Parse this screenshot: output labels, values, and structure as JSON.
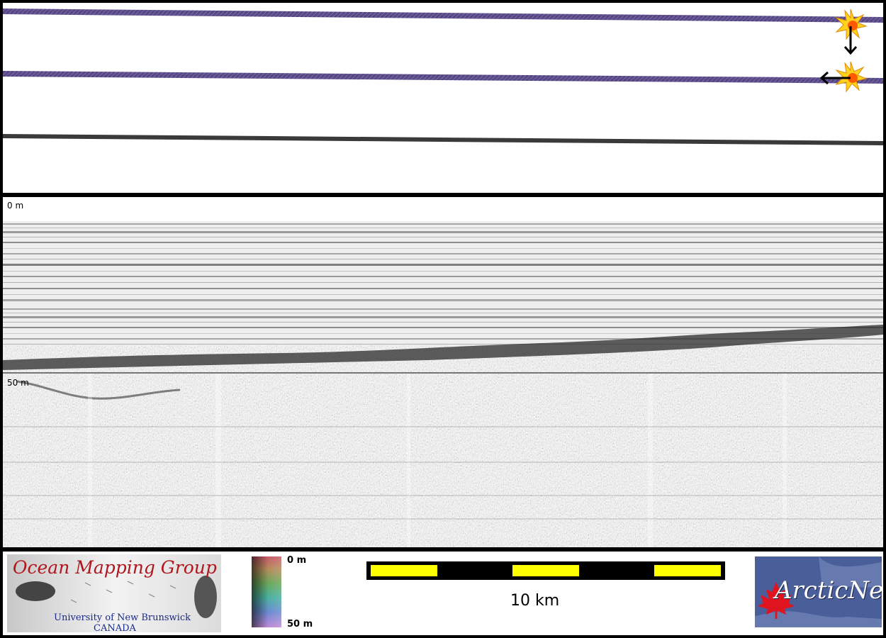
{
  "depth_axis": {
    "top_label": "0 m",
    "mid_label": "50 m"
  },
  "legend": {
    "color_top": "0 m",
    "color_bottom": "50 m"
  },
  "scale": {
    "label": "10 km",
    "colors": {
      "bar": "#000000",
      "segment": "#ffff00"
    }
  },
  "logos": {
    "omg_title": "Ocean Mapping Group",
    "omg_sub1": "University of New Brunswick",
    "omg_sub2": "CANADA",
    "arcticnet": "ArcticNet"
  },
  "icons": {
    "start_marker": "starburst-icon",
    "arrow_down": "arrow-down-icon",
    "arrow_left": "arrow-left-icon"
  },
  "colors": {
    "frame": "#000000",
    "panel": "#ffffff",
    "track_color": "#5a4a8a",
    "omg_red": "#b0161e",
    "omg_blue": "#1a2a88",
    "arcticnet_bg": "#4a5e9a"
  }
}
